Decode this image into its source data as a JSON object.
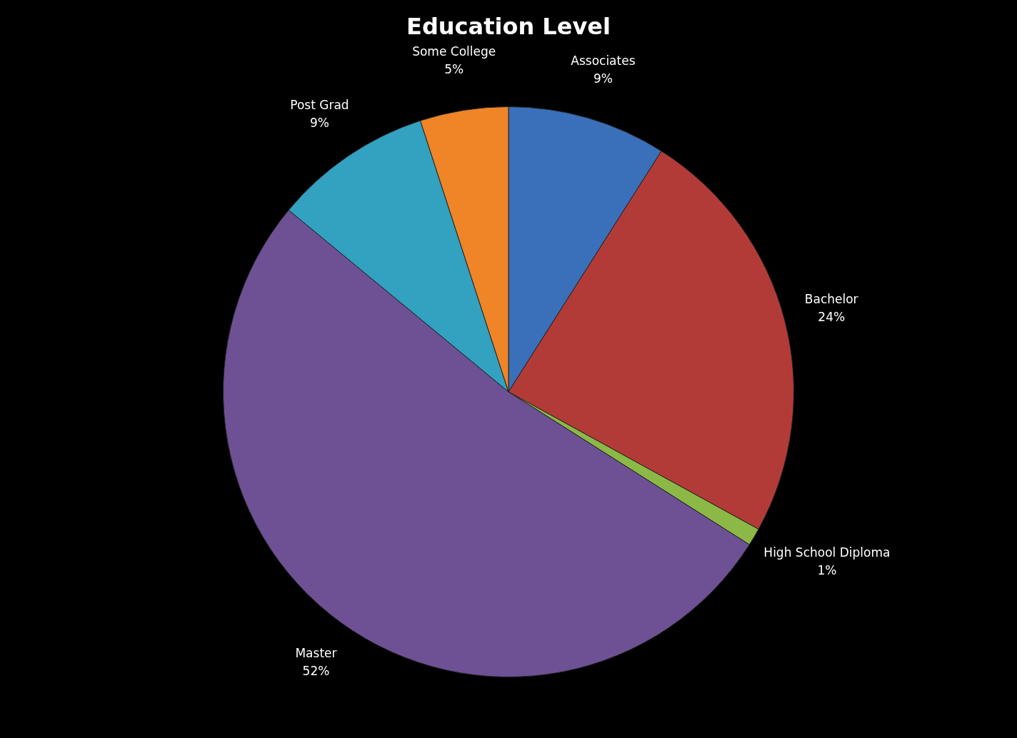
{
  "chart_data": {
    "type": "pie",
    "title": "Education Level",
    "categories": [
      "Associates",
      "Bachelor",
      "High School Diploma",
      "Master",
      "Post Grad",
      "Some College"
    ],
    "values": [
      9,
      24,
      1,
      52,
      9,
      5
    ],
    "value_labels": [
      "9%",
      "24%",
      "1%",
      "52%",
      "9%",
      "5%"
    ],
    "colors": [
      "#3a70b9",
      "#b33b37",
      "#8cb846",
      "#6d5194",
      "#33a1c0",
      "#ef8527"
    ],
    "legend": false
  }
}
